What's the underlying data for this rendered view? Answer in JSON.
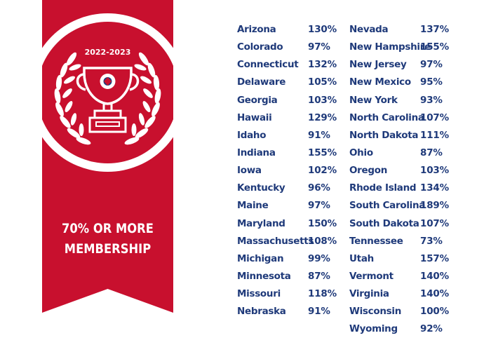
{
  "badge": {
    "year": "2022-2023",
    "caption_line1": "70% OR MORE",
    "caption_line2": "MEMBERSHIP",
    "ribbon_color": "#c8102e",
    "icon": "trophy-icon"
  },
  "states_left": [
    {
      "state": "Arizona",
      "pct": "130%"
    },
    {
      "state": "Colorado",
      "pct": "97%"
    },
    {
      "state": "Connecticut",
      "pct": "132%"
    },
    {
      "state": "Delaware",
      "pct": "105%"
    },
    {
      "state": "Georgia",
      "pct": "103%"
    },
    {
      "state": "Hawaii",
      "pct": "129%"
    },
    {
      "state": "Idaho",
      "pct": "91%"
    },
    {
      "state": "Indiana",
      "pct": "155%"
    },
    {
      "state": "Iowa",
      "pct": "102%"
    },
    {
      "state": "Kentucky",
      "pct": "96%"
    },
    {
      "state": "Maine",
      "pct": "97%"
    },
    {
      "state": "Maryland",
      "pct": "150%"
    },
    {
      "state": "Massachusetts",
      "pct": "108%"
    },
    {
      "state": "Michigan",
      "pct": "99%"
    },
    {
      "state": "Minnesota",
      "pct": "87%"
    },
    {
      "state": "Missouri",
      "pct": "118%"
    },
    {
      "state": "Nebraska",
      "pct": "91%"
    }
  ],
  "states_right": [
    {
      "state": "Nevada",
      "pct": "137%"
    },
    {
      "state": "New Hampshire",
      "pct": "155%"
    },
    {
      "state": "New Jersey",
      "pct": "97%"
    },
    {
      "state": "New Mexico",
      "pct": "95%"
    },
    {
      "state": "New York",
      "pct": "93%"
    },
    {
      "state": "North Carolina",
      "pct": "107%"
    },
    {
      "state": "North Dakota",
      "pct": "111%"
    },
    {
      "state": "Ohio",
      "pct": "87%"
    },
    {
      "state": "Oregon",
      "pct": "103%"
    },
    {
      "state": "Rhode Island",
      "pct": "134%"
    },
    {
      "state": "South Carolina",
      "pct": "189%"
    },
    {
      "state": "South Dakota",
      "pct": "107%"
    },
    {
      "state": "Tennessee",
      "pct": "73%"
    },
    {
      "state": "Utah",
      "pct": "157%"
    },
    {
      "state": "Vermont",
      "pct": "140%"
    },
    {
      "state": "Virginia",
      "pct": "140%"
    },
    {
      "state": "Wisconsin",
      "pct": "100%"
    },
    {
      "state": "Wyoming",
      "pct": "92%"
    }
  ],
  "colors": {
    "text": "#1f3a7a",
    "ribbon": "#c8102e"
  }
}
